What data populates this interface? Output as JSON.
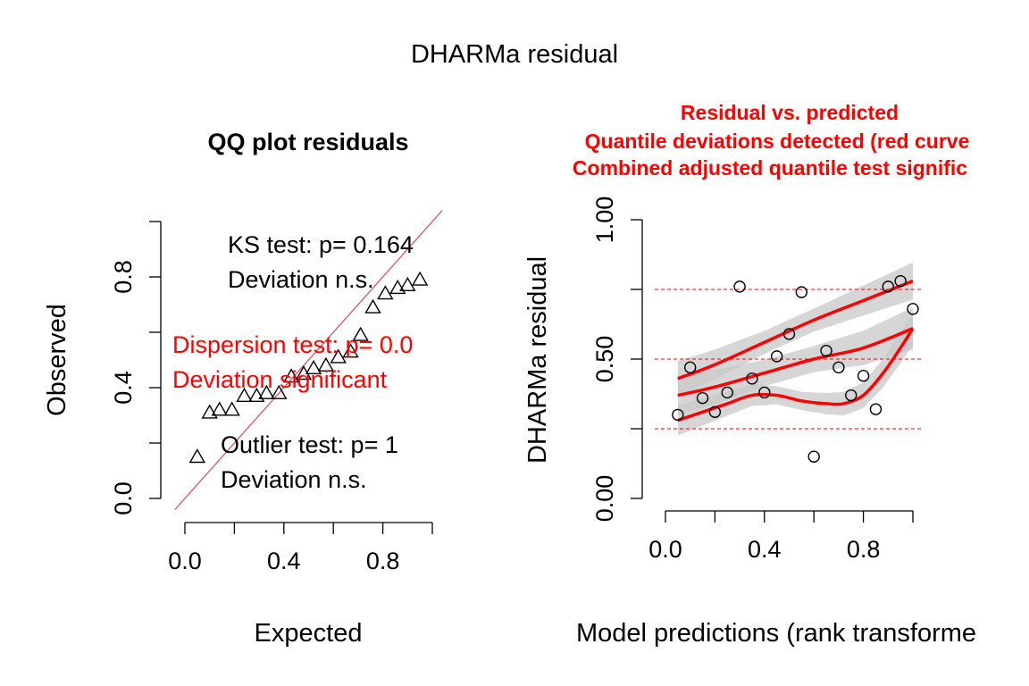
{
  "overall_title": "DHARMa residual",
  "chart_data": [
    {
      "type": "scatter",
      "title": "QQ plot residuals",
      "xlabel": "Expected",
      "ylabel": "Observed",
      "xlim": [
        0,
        1
      ],
      "ylim": [
        0,
        1
      ],
      "x_ticks": [
        0,
        0.2,
        0.4,
        0.6,
        0.8,
        1.0
      ],
      "x_tick_labels": [
        "0.0",
        "",
        "0.4",
        "",
        "0.8",
        ""
      ],
      "y_ticks": [
        0,
        0.2,
        0.4,
        0.6,
        0.8,
        1.0
      ],
      "y_tick_labels": [
        "0.0",
        "",
        "0.4",
        "",
        "0.8",
        ""
      ],
      "points": {
        "x": [
          0.05,
          0.1,
          0.14,
          0.19,
          0.24,
          0.29,
          0.33,
          0.38,
          0.43,
          0.48,
          0.52,
          0.57,
          0.62,
          0.67,
          0.71,
          0.76,
          0.81,
          0.86,
          0.9,
          0.95
        ],
        "y": [
          0.15,
          0.31,
          0.32,
          0.32,
          0.37,
          0.37,
          0.38,
          0.38,
          0.44,
          0.45,
          0.47,
          0.48,
          0.51,
          0.53,
          0.59,
          0.69,
          0.74,
          0.76,
          0.77,
          0.79
        ]
      },
      "reference_line": {
        "intercept": 0,
        "slope": 1,
        "color": "#DF536B"
      },
      "annotations": [
        {
          "lines": [
            "KS test: p= 0.164",
            "Deviation  n.s."
          ],
          "color": "#000000"
        },
        {
          "lines": [
            "Dispersion test: p= 0.0",
            "Deviation  significant"
          ],
          "color": "#FF0000"
        },
        {
          "lines": [
            "Outlier test: p= 1",
            "Deviation  n.s."
          ],
          "color": "#000000"
        }
      ]
    },
    {
      "type": "scatter",
      "title_lines": [
        "Residual vs. predicted",
        "Quantile deviations detected (red curve",
        "Combined adjusted quantile test signific"
      ],
      "title_color": "#FF0000",
      "xlabel": "Model predictions (rank transforme",
      "ylabel": "DHARMa residual",
      "xlim": [
        0,
        1
      ],
      "ylim": [
        0,
        1
      ],
      "x_ticks": [
        0,
        0.2,
        0.4,
        0.6,
        0.8,
        1.0
      ],
      "x_tick_labels": [
        "0.0",
        "",
        "0.4",
        "",
        "0.8",
        ""
      ],
      "y_ticks": [
        0,
        0.25,
        0.5,
        0.75,
        1.0
      ],
      "y_tick_labels": [
        "0.00",
        "",
        "0.50",
        "",
        "1.00"
      ],
      "points": {
        "x": [
          0.05,
          0.1,
          0.15,
          0.2,
          0.25,
          0.3,
          0.35,
          0.4,
          0.45,
          0.5,
          0.55,
          0.6,
          0.65,
          0.7,
          0.75,
          0.8,
          0.85,
          0.9,
          0.95,
          1.0
        ],
        "y": [
          0.3,
          0.47,
          0.36,
          0.31,
          0.38,
          0.76,
          0.43,
          0.38,
          0.51,
          0.59,
          0.74,
          0.15,
          0.53,
          0.47,
          0.37,
          0.44,
          0.32,
          0.76,
          0.78,
          0.68
        ]
      },
      "hlines": [
        0.25,
        0.5,
        0.75
      ],
      "hline_color": "#FF0000",
      "quantile_curves": [
        {
          "x": [
            0.05,
            0.2,
            0.4,
            0.6,
            0.8,
            1.0
          ],
          "y": [
            0.43,
            0.48,
            0.56,
            0.64,
            0.71,
            0.78
          ]
        },
        {
          "x": [
            0.05,
            0.2,
            0.4,
            0.6,
            0.8,
            1.0
          ],
          "y": [
            0.37,
            0.4,
            0.45,
            0.5,
            0.54,
            0.61
          ]
        },
        {
          "x": [
            0.05,
            0.15,
            0.25,
            0.35,
            0.45,
            0.55,
            0.65,
            0.72,
            0.8,
            0.88,
            0.95,
            1.0
          ],
          "y": [
            0.28,
            0.31,
            0.34,
            0.37,
            0.37,
            0.35,
            0.34,
            0.34,
            0.37,
            0.45,
            0.54,
            0.61
          ]
        }
      ],
      "curve_color": "#FF0000",
      "band_color": "#C8C8C8"
    }
  ]
}
